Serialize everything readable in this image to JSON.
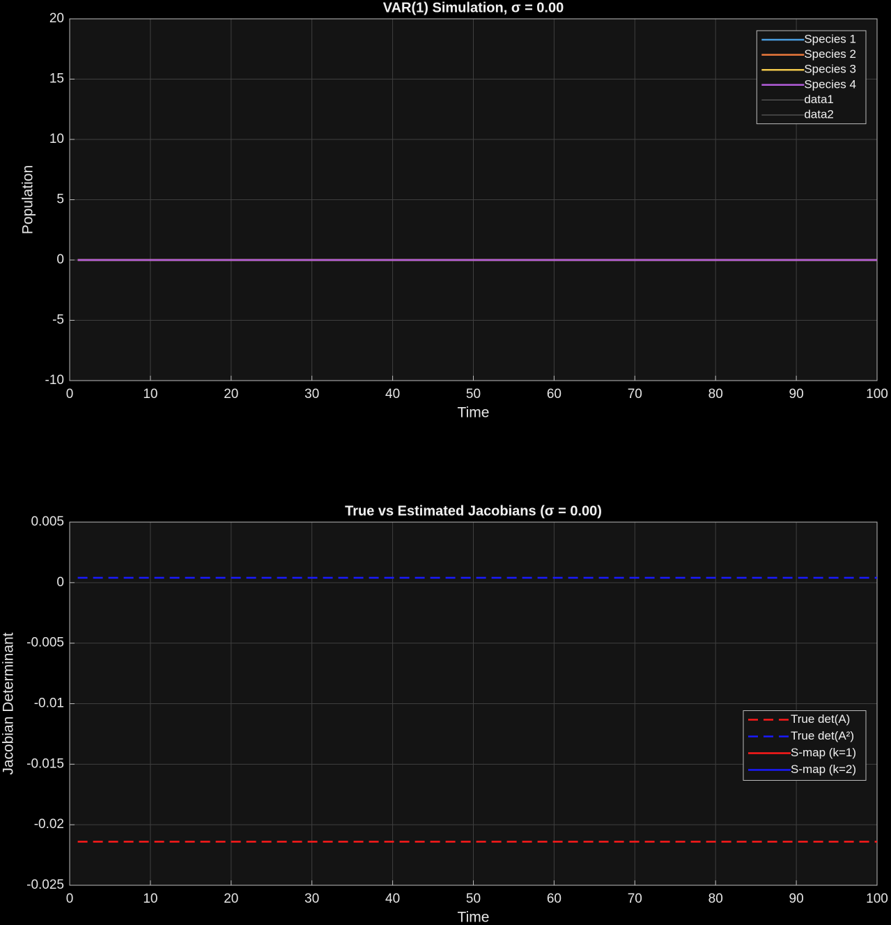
{
  "chart_data": [
    {
      "type": "line",
      "title": "VAR(1) Simulation, σ = 0.00",
      "xlabel": "Time",
      "ylabel": "Population",
      "x": [
        1,
        100
      ],
      "series": [
        {
          "name": "Species 1",
          "color": "#4a9ee0",
          "linestyle": "-",
          "values": [
            0,
            0
          ]
        },
        {
          "name": "Species 2",
          "color": "#ee7a3c",
          "linestyle": "-",
          "values": [
            0,
            0
          ]
        },
        {
          "name": "Species 3",
          "color": "#f2c94c",
          "linestyle": "-",
          "values": [
            0,
            0
          ]
        },
        {
          "name": "Species 4",
          "color": "#b45ddc",
          "linestyle": "-",
          "values": [
            0,
            0
          ]
        },
        {
          "name": "data1",
          "color": "#6e6e6e",
          "linestyle": "-",
          "values": [
            null,
            null
          ]
        },
        {
          "name": "data2",
          "color": "#6e6e6e",
          "linestyle": "-",
          "values": [
            null,
            null
          ]
        }
      ],
      "xlim": [
        0,
        100
      ],
      "xticks": [
        0,
        10,
        20,
        30,
        40,
        50,
        60,
        70,
        80,
        90,
        100
      ],
      "ylim": [
        -10,
        20
      ],
      "yticks": [
        -10,
        -5,
        0,
        5,
        10,
        15,
        20
      ],
      "grid": true,
      "legend": "upper right"
    },
    {
      "type": "line",
      "title": "True vs Estimated Jacobians (σ = 0.00)",
      "xlabel": "Time",
      "ylabel": "Jacobian Determinant",
      "x": [
        1,
        100
      ],
      "series": [
        {
          "name": "True det(A)",
          "color": "#ff1a1a",
          "linestyle": "--",
          "values": [
            -0.0214,
            -0.0214
          ]
        },
        {
          "name": "True  det(A²)",
          "color": "#1a1aff",
          "linestyle": "--",
          "values": [
            0.0004,
            0.0004
          ]
        },
        {
          "name": "S-map (k=1)",
          "color": "#ff1a1a",
          "linestyle": "-",
          "values": [
            null,
            null
          ]
        },
        {
          "name": "S-map (k=2)",
          "color": "#1a1aff",
          "linestyle": "-",
          "values": [
            null,
            null
          ]
        }
      ],
      "xlim": [
        0,
        100
      ],
      "xticks": [
        0,
        10,
        20,
        30,
        40,
        50,
        60,
        70,
        80,
        90,
        100
      ],
      "ylim": [
        -0.025,
        0.005
      ],
      "yticks": [
        -0.025,
        -0.02,
        -0.015,
        -0.01,
        -0.005,
        0,
        0.005
      ],
      "grid": true,
      "legend": "right"
    }
  ]
}
